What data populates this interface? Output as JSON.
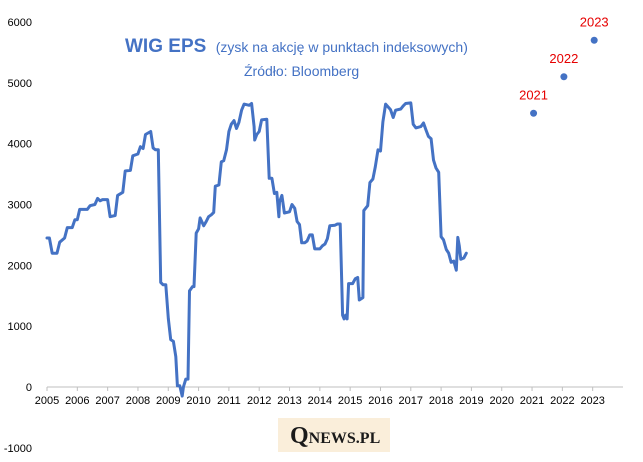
{
  "chart_data": {
    "type": "line",
    "title": "WIG EPS",
    "subtitle": "(zysk na akcję w punktach indeksowych)",
    "source": "Źródło: Bloomberg",
    "ylim": [
      -1000,
      6000
    ],
    "xlim": [
      2005,
      2024
    ],
    "y_ticks": [
      -1000,
      0,
      1000,
      2000,
      3000,
      4000,
      5000,
      6000
    ],
    "x_ticks": [
      2005,
      2006,
      2007,
      2008,
      2009,
      2010,
      2011,
      2012,
      2013,
      2014,
      2015,
      2016,
      2017,
      2018,
      2019,
      2020,
      2021,
      2022,
      2023
    ],
    "grid": false,
    "series": [
      {
        "name": "WIG EPS",
        "color": "#4472c4",
        "points": [
          [
            2005.0,
            2450
          ],
          [
            2005.08,
            2450
          ],
          [
            2005.17,
            2200
          ],
          [
            2005.33,
            2200
          ],
          [
            2005.42,
            2380
          ],
          [
            2005.58,
            2450
          ],
          [
            2005.67,
            2620
          ],
          [
            2005.83,
            2620
          ],
          [
            2005.92,
            2750
          ],
          [
            2006.0,
            2750
          ],
          [
            2006.08,
            2920
          ],
          [
            2006.33,
            2920
          ],
          [
            2006.42,
            2980
          ],
          [
            2006.58,
            3000
          ],
          [
            2006.67,
            3100
          ],
          [
            2006.75,
            3060
          ],
          [
            2006.83,
            3080
          ],
          [
            2007.0,
            3080
          ],
          [
            2007.08,
            2800
          ],
          [
            2007.25,
            2820
          ],
          [
            2007.33,
            3150
          ],
          [
            2007.5,
            3200
          ],
          [
            2007.58,
            3550
          ],
          [
            2007.75,
            3560
          ],
          [
            2007.83,
            3800
          ],
          [
            2008.0,
            3830
          ],
          [
            2008.08,
            3950
          ],
          [
            2008.17,
            3920
          ],
          [
            2008.25,
            4150
          ],
          [
            2008.42,
            4200
          ],
          [
            2008.5,
            3930
          ],
          [
            2008.58,
            3900
          ],
          [
            2008.67,
            3900
          ],
          [
            2008.75,
            1720
          ],
          [
            2008.83,
            1680
          ],
          [
            2008.92,
            1680
          ],
          [
            2009.0,
            1130
          ],
          [
            2009.08,
            780
          ],
          [
            2009.17,
            750
          ],
          [
            2009.25,
            500
          ],
          [
            2009.3,
            20
          ],
          [
            2009.38,
            20
          ],
          [
            2009.46,
            -150
          ],
          [
            2009.5,
            0
          ],
          [
            2009.58,
            130
          ],
          [
            2009.65,
            130
          ],
          [
            2009.7,
            1580
          ],
          [
            2009.8,
            1650
          ],
          [
            2009.85,
            1650
          ],
          [
            2009.92,
            2530
          ],
          [
            2010.0,
            2600
          ],
          [
            2010.05,
            2780
          ],
          [
            2010.17,
            2650
          ],
          [
            2010.25,
            2720
          ],
          [
            2010.33,
            2800
          ],
          [
            2010.42,
            2830
          ],
          [
            2010.5,
            2870
          ],
          [
            2010.55,
            3300
          ],
          [
            2010.67,
            3320
          ],
          [
            2010.75,
            3700
          ],
          [
            2010.83,
            3720
          ],
          [
            2010.92,
            3900
          ],
          [
            2011.0,
            4200
          ],
          [
            2011.08,
            4320
          ],
          [
            2011.17,
            4380
          ],
          [
            2011.25,
            4250
          ],
          [
            2011.33,
            4350
          ],
          [
            2011.42,
            4550
          ],
          [
            2011.5,
            4650
          ],
          [
            2011.67,
            4630
          ],
          [
            2011.75,
            4660
          ],
          [
            2011.83,
            4280
          ],
          [
            2011.85,
            4060
          ],
          [
            2011.92,
            4150
          ],
          [
            2012.0,
            4200
          ],
          [
            2012.08,
            4390
          ],
          [
            2012.25,
            4400
          ],
          [
            2012.33,
            3430
          ],
          [
            2012.42,
            3430
          ],
          [
            2012.5,
            3180
          ],
          [
            2012.58,
            3200
          ],
          [
            2012.65,
            2800
          ],
          [
            2012.67,
            3040
          ],
          [
            2012.75,
            3150
          ],
          [
            2012.83,
            2860
          ],
          [
            2013.0,
            2880
          ],
          [
            2013.08,
            3000
          ],
          [
            2013.17,
            2940
          ],
          [
            2013.25,
            2720
          ],
          [
            2013.33,
            2670
          ],
          [
            2013.4,
            2370
          ],
          [
            2013.5,
            2370
          ],
          [
            2013.58,
            2400
          ],
          [
            2013.67,
            2500
          ],
          [
            2013.75,
            2500
          ],
          [
            2013.83,
            2270
          ],
          [
            2014.0,
            2270
          ],
          [
            2014.08,
            2320
          ],
          [
            2014.17,
            2350
          ],
          [
            2014.25,
            2440
          ],
          [
            2014.33,
            2650
          ],
          [
            2014.5,
            2660
          ],
          [
            2014.58,
            2680
          ],
          [
            2014.67,
            2680
          ],
          [
            2014.75,
            1180
          ],
          [
            2014.8,
            1120
          ],
          [
            2014.85,
            1180
          ],
          [
            2014.9,
            1120
          ],
          [
            2014.95,
            1700
          ],
          [
            2015.08,
            1700
          ],
          [
            2015.17,
            1780
          ],
          [
            2015.25,
            1800
          ],
          [
            2015.3,
            1430
          ],
          [
            2015.42,
            1470
          ],
          [
            2015.45,
            2900
          ],
          [
            2015.58,
            2980
          ],
          [
            2015.65,
            3360
          ],
          [
            2015.75,
            3420
          ],
          [
            2015.83,
            3620
          ],
          [
            2015.92,
            3900
          ],
          [
            2016.0,
            3880
          ],
          [
            2016.08,
            4360
          ],
          [
            2016.17,
            4650
          ],
          [
            2016.33,
            4560
          ],
          [
            2016.42,
            4430
          ],
          [
            2016.5,
            4550
          ],
          [
            2016.67,
            4570
          ],
          [
            2016.75,
            4620
          ],
          [
            2016.83,
            4660
          ],
          [
            2017.0,
            4670
          ],
          [
            2017.08,
            4320
          ],
          [
            2017.17,
            4260
          ],
          [
            2017.33,
            4280
          ],
          [
            2017.42,
            4340
          ],
          [
            2017.5,
            4230
          ],
          [
            2017.58,
            4120
          ],
          [
            2017.67,
            4080
          ],
          [
            2017.75,
            3730
          ],
          [
            2017.83,
            3600
          ],
          [
            2017.92,
            3530
          ],
          [
            2018.0,
            2470
          ],
          [
            2018.08,
            2420
          ],
          [
            2018.17,
            2260
          ],
          [
            2018.25,
            2200
          ],
          [
            2018.33,
            2050
          ],
          [
            2018.42,
            2070
          ],
          [
            2018.5,
            1920
          ],
          [
            2018.55,
            2460
          ],
          [
            2018.6,
            2320
          ],
          [
            2018.65,
            2100
          ],
          [
            2018.75,
            2120
          ],
          [
            2018.83,
            2200
          ]
        ]
      }
    ],
    "forecasts": [
      {
        "label": "2021",
        "x": 2021.05,
        "y": 4500
      },
      {
        "label": "2022",
        "x": 2022.05,
        "y": 5100
      },
      {
        "label": "2023",
        "x": 2023.05,
        "y": 5700
      }
    ],
    "watermark": {
      "q": "Q",
      "rest": "NEWS.PL"
    }
  }
}
